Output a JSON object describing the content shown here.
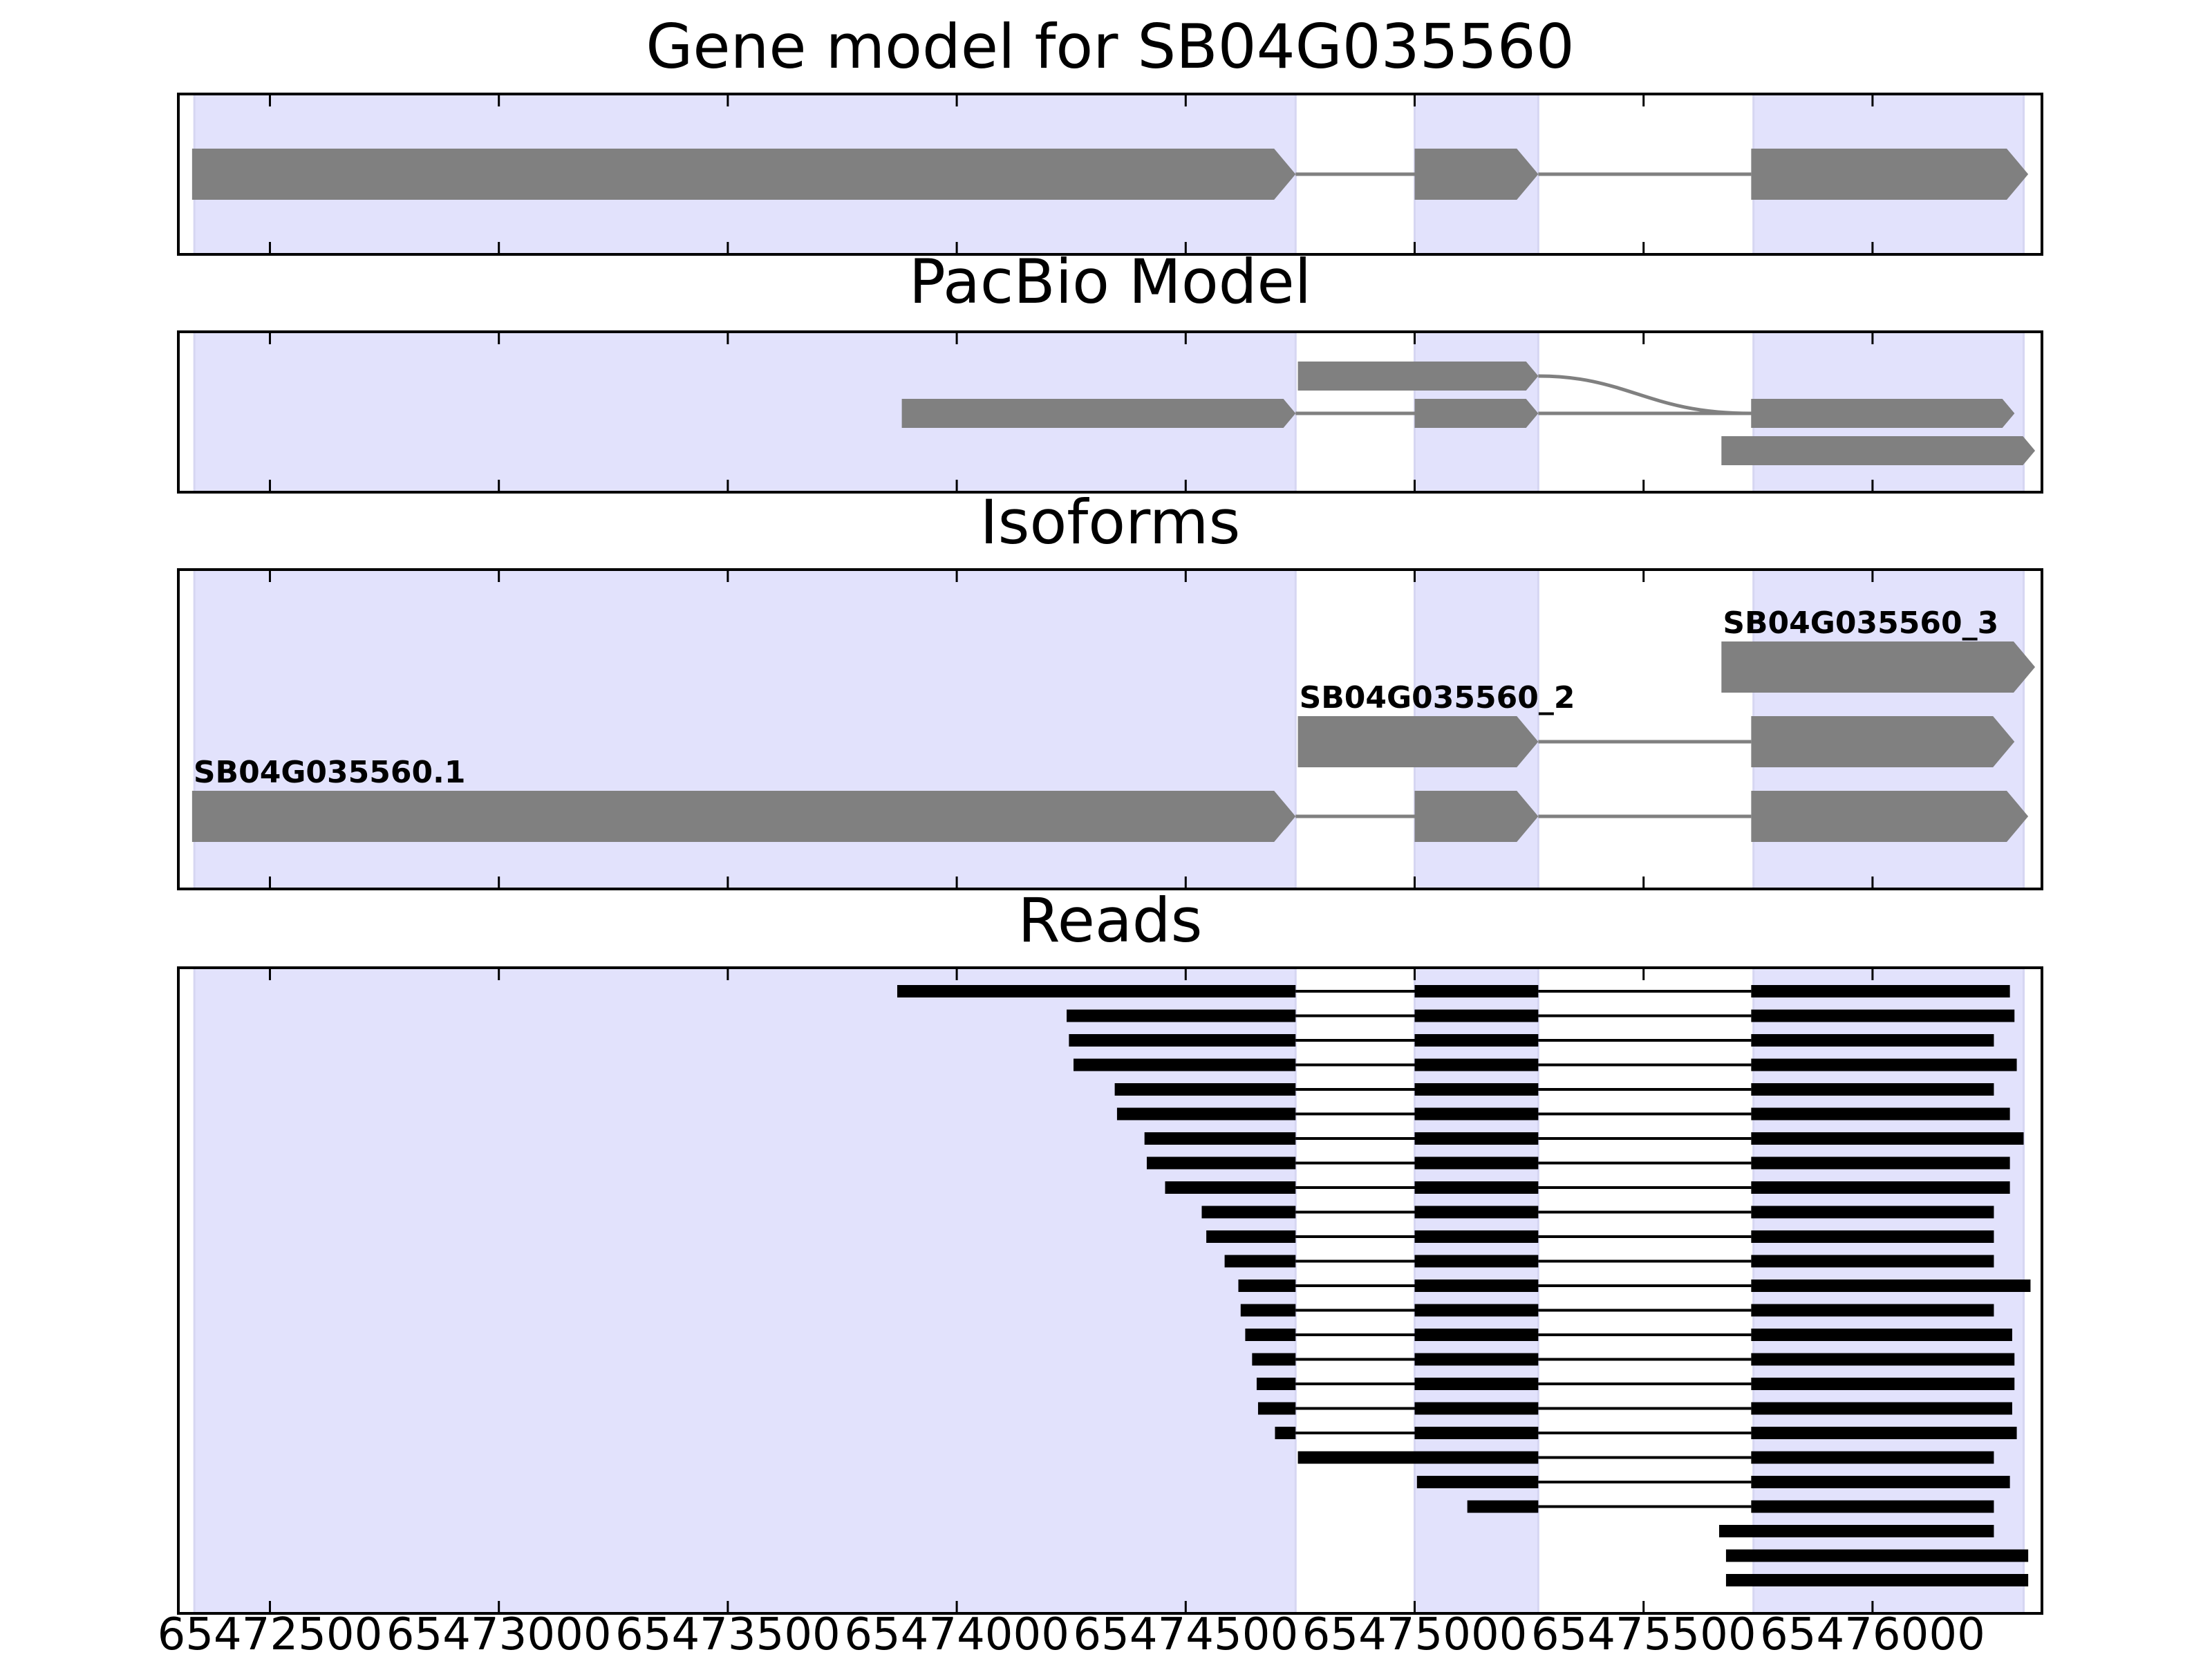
{
  "chart_data": {
    "type": "gene-track",
    "xlim": [
      65472300,
      65476370
    ],
    "xticks": [
      65472500,
      65473000,
      65473500,
      65474000,
      65474500,
      65475000,
      65475500,
      65476000
    ],
    "xtick_labels": [
      "65472500",
      "65473000",
      "65473500",
      "65474000",
      "65474500",
      "65475000",
      "65475500",
      "65476000"
    ],
    "highlight_regions": [
      [
        65472335,
        65474740
      ],
      [
        65475000,
        65475270
      ],
      [
        65475740,
        65476330
      ]
    ],
    "colors": {
      "highlight": "#e2e2fc",
      "feature": "#808080",
      "read": "#000000",
      "axis": "#000000"
    },
    "panels": [
      {
        "key": "gene_model",
        "title": "Gene model for SB04G035560",
        "rows": 1,
        "models": [
          {
            "row": 0,
            "exons": [
              [
                65472330,
                65474740
              ],
              [
                65475000,
                65475270
              ],
              [
                65475735,
                65476340
              ]
            ]
          }
        ]
      },
      {
        "key": "pacbio",
        "title": "PacBio Model",
        "rows": 3,
        "models": [
          {
            "row": 1,
            "exons": [
              [
                65473880,
                65474740
              ],
              [
                65475000,
                65475270
              ],
              [
                65475735,
                65476310
              ]
            ]
          },
          {
            "row": 0,
            "exons": [
              [
                65474745,
                65475270
              ],
              [
                65475735,
                65476310
              ]
            ],
            "curved_junction": true,
            "junction_to_row": 1
          },
          {
            "row": 2,
            "exons": [
              [
                65475670,
                65476355
              ]
            ]
          }
        ]
      },
      {
        "key": "isoforms",
        "title": "Isoforms",
        "rows": 4,
        "models": [
          {
            "row": 1,
            "label": "SB04G035560.1",
            "exons": [
              [
                65472330,
                65474740
              ],
              [
                65475000,
                65475270
              ],
              [
                65475735,
                65476340
              ]
            ]
          },
          {
            "row": 2,
            "label": "SB04G035560_2",
            "exons": [
              [
                65474745,
                65475270
              ],
              [
                65475735,
                65476310
              ]
            ]
          },
          {
            "row": 3,
            "label": "SB04G035560_3",
            "exons": [
              [
                65475670,
                65476355
              ]
            ]
          }
        ]
      },
      {
        "key": "reads",
        "title": "Reads",
        "rows": 25,
        "reads": [
          [
            [
              65473870,
              65474740
            ],
            [
              65475000,
              65475270
            ],
            [
              65475735,
              65476300
            ]
          ],
          [
            [
              65474240,
              65474740
            ],
            [
              65475000,
              65475270
            ],
            [
              65475735,
              65476310
            ]
          ],
          [
            [
              65474245,
              65474740
            ],
            [
              65475000,
              65475270
            ],
            [
              65475735,
              65476265
            ]
          ],
          [
            [
              65474255,
              65474740
            ],
            [
              65475000,
              65475270
            ],
            [
              65475735,
              65476315
            ]
          ],
          [
            [
              65474345,
              65474740
            ],
            [
              65475000,
              65475270
            ],
            [
              65475735,
              65476265
            ]
          ],
          [
            [
              65474350,
              65474740
            ],
            [
              65475000,
              65475270
            ],
            [
              65475735,
              65476300
            ]
          ],
          [
            [
              65474410,
              65474740
            ],
            [
              65475000,
              65475270
            ],
            [
              65475735,
              65476330
            ]
          ],
          [
            [
              65474415,
              65474740
            ],
            [
              65475000,
              65475270
            ],
            [
              65475735,
              65476300
            ]
          ],
          [
            [
              65474455,
              65474740
            ],
            [
              65475000,
              65475270
            ],
            [
              65475735,
              65476300
            ]
          ],
          [
            [
              65474535,
              65474740
            ],
            [
              65475000,
              65475270
            ],
            [
              65475735,
              65476265
            ]
          ],
          [
            [
              65474545,
              65474740
            ],
            [
              65475000,
              65475270
            ],
            [
              65475735,
              65476265
            ]
          ],
          [
            [
              65474585,
              65474740
            ],
            [
              65475000,
              65475270
            ],
            [
              65475735,
              65476265
            ]
          ],
          [
            [
              65474615,
              65474740
            ],
            [
              65475000,
              65475270
            ],
            [
              65475735,
              65476345
            ]
          ],
          [
            [
              65474620,
              65474740
            ],
            [
              65475000,
              65475270
            ],
            [
              65475735,
              65476265
            ]
          ],
          [
            [
              65474630,
              65474740
            ],
            [
              65475000,
              65475270
            ],
            [
              65475735,
              65476305
            ]
          ],
          [
            [
              65474645,
              65474740
            ],
            [
              65475000,
              65475270
            ],
            [
              65475735,
              65476310
            ]
          ],
          [
            [
              65474655,
              65474740
            ],
            [
              65475000,
              65475270
            ],
            [
              65475735,
              65476310
            ]
          ],
          [
            [
              65474658,
              65474740
            ],
            [
              65475000,
              65475270
            ],
            [
              65475735,
              65476305
            ]
          ],
          [
            [
              65474695,
              65474740
            ],
            [
              65475000,
              65475270
            ],
            [
              65475735,
              65476315
            ]
          ],
          [
            [
              65474745,
              65475270
            ],
            [
              65475735,
              65476265
            ]
          ],
          [
            [
              65475005,
              65475270
            ],
            [
              65475735,
              65476300
            ]
          ],
          [
            [
              65475115,
              65475270
            ],
            [
              65475735,
              65476265
            ]
          ],
          [
            [
              65475665,
              65476265
            ]
          ],
          [
            [
              65475680,
              65476340
            ]
          ],
          [
            [
              65475680,
              65476340
            ]
          ]
        ]
      }
    ]
  }
}
